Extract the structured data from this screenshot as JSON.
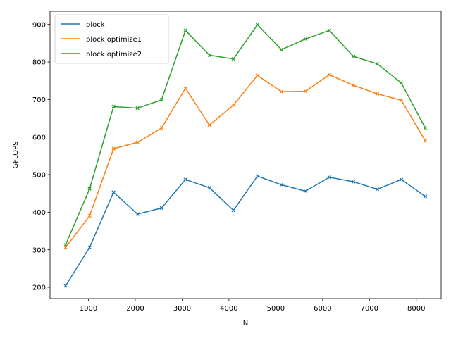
{
  "chart_data": {
    "type": "line",
    "title": "",
    "xlabel": "N",
    "ylabel": "GFLOPS",
    "xlim": [
      180,
      8530
    ],
    "ylim": [
      170,
      935
    ],
    "xticks": [
      1000,
      2000,
      3000,
      4000,
      5000,
      6000,
      7000,
      8000
    ],
    "yticks": [
      200,
      300,
      400,
      500,
      600,
      700,
      800,
      900
    ],
    "grid": false,
    "legend_position": "top-left",
    "x": [
      512,
      1024,
      1536,
      2048,
      2560,
      3072,
      3584,
      4096,
      4608,
      5120,
      5632,
      6144,
      6656,
      7168,
      7680,
      8192
    ],
    "series": [
      {
        "name": "block",
        "color": "#1f77b4",
        "values": [
          204,
          306,
          453,
          395,
          411,
          487,
          465,
          405,
          496,
          473,
          456,
          493,
          481,
          461,
          487,
          442
        ]
      },
      {
        "name": "block optimize1",
        "color": "#ff7f0e",
        "values": [
          306,
          390,
          569,
          586,
          624,
          730,
          632,
          685,
          764,
          721,
          722,
          766,
          738,
          715,
          698,
          590
        ]
      },
      {
        "name": "block optimize2",
        "color": "#2ca02c",
        "values": [
          313,
          462,
          681,
          677,
          699,
          884,
          818,
          808,
          899,
          833,
          861,
          884,
          815,
          795,
          744,
          624
        ]
      }
    ]
  }
}
